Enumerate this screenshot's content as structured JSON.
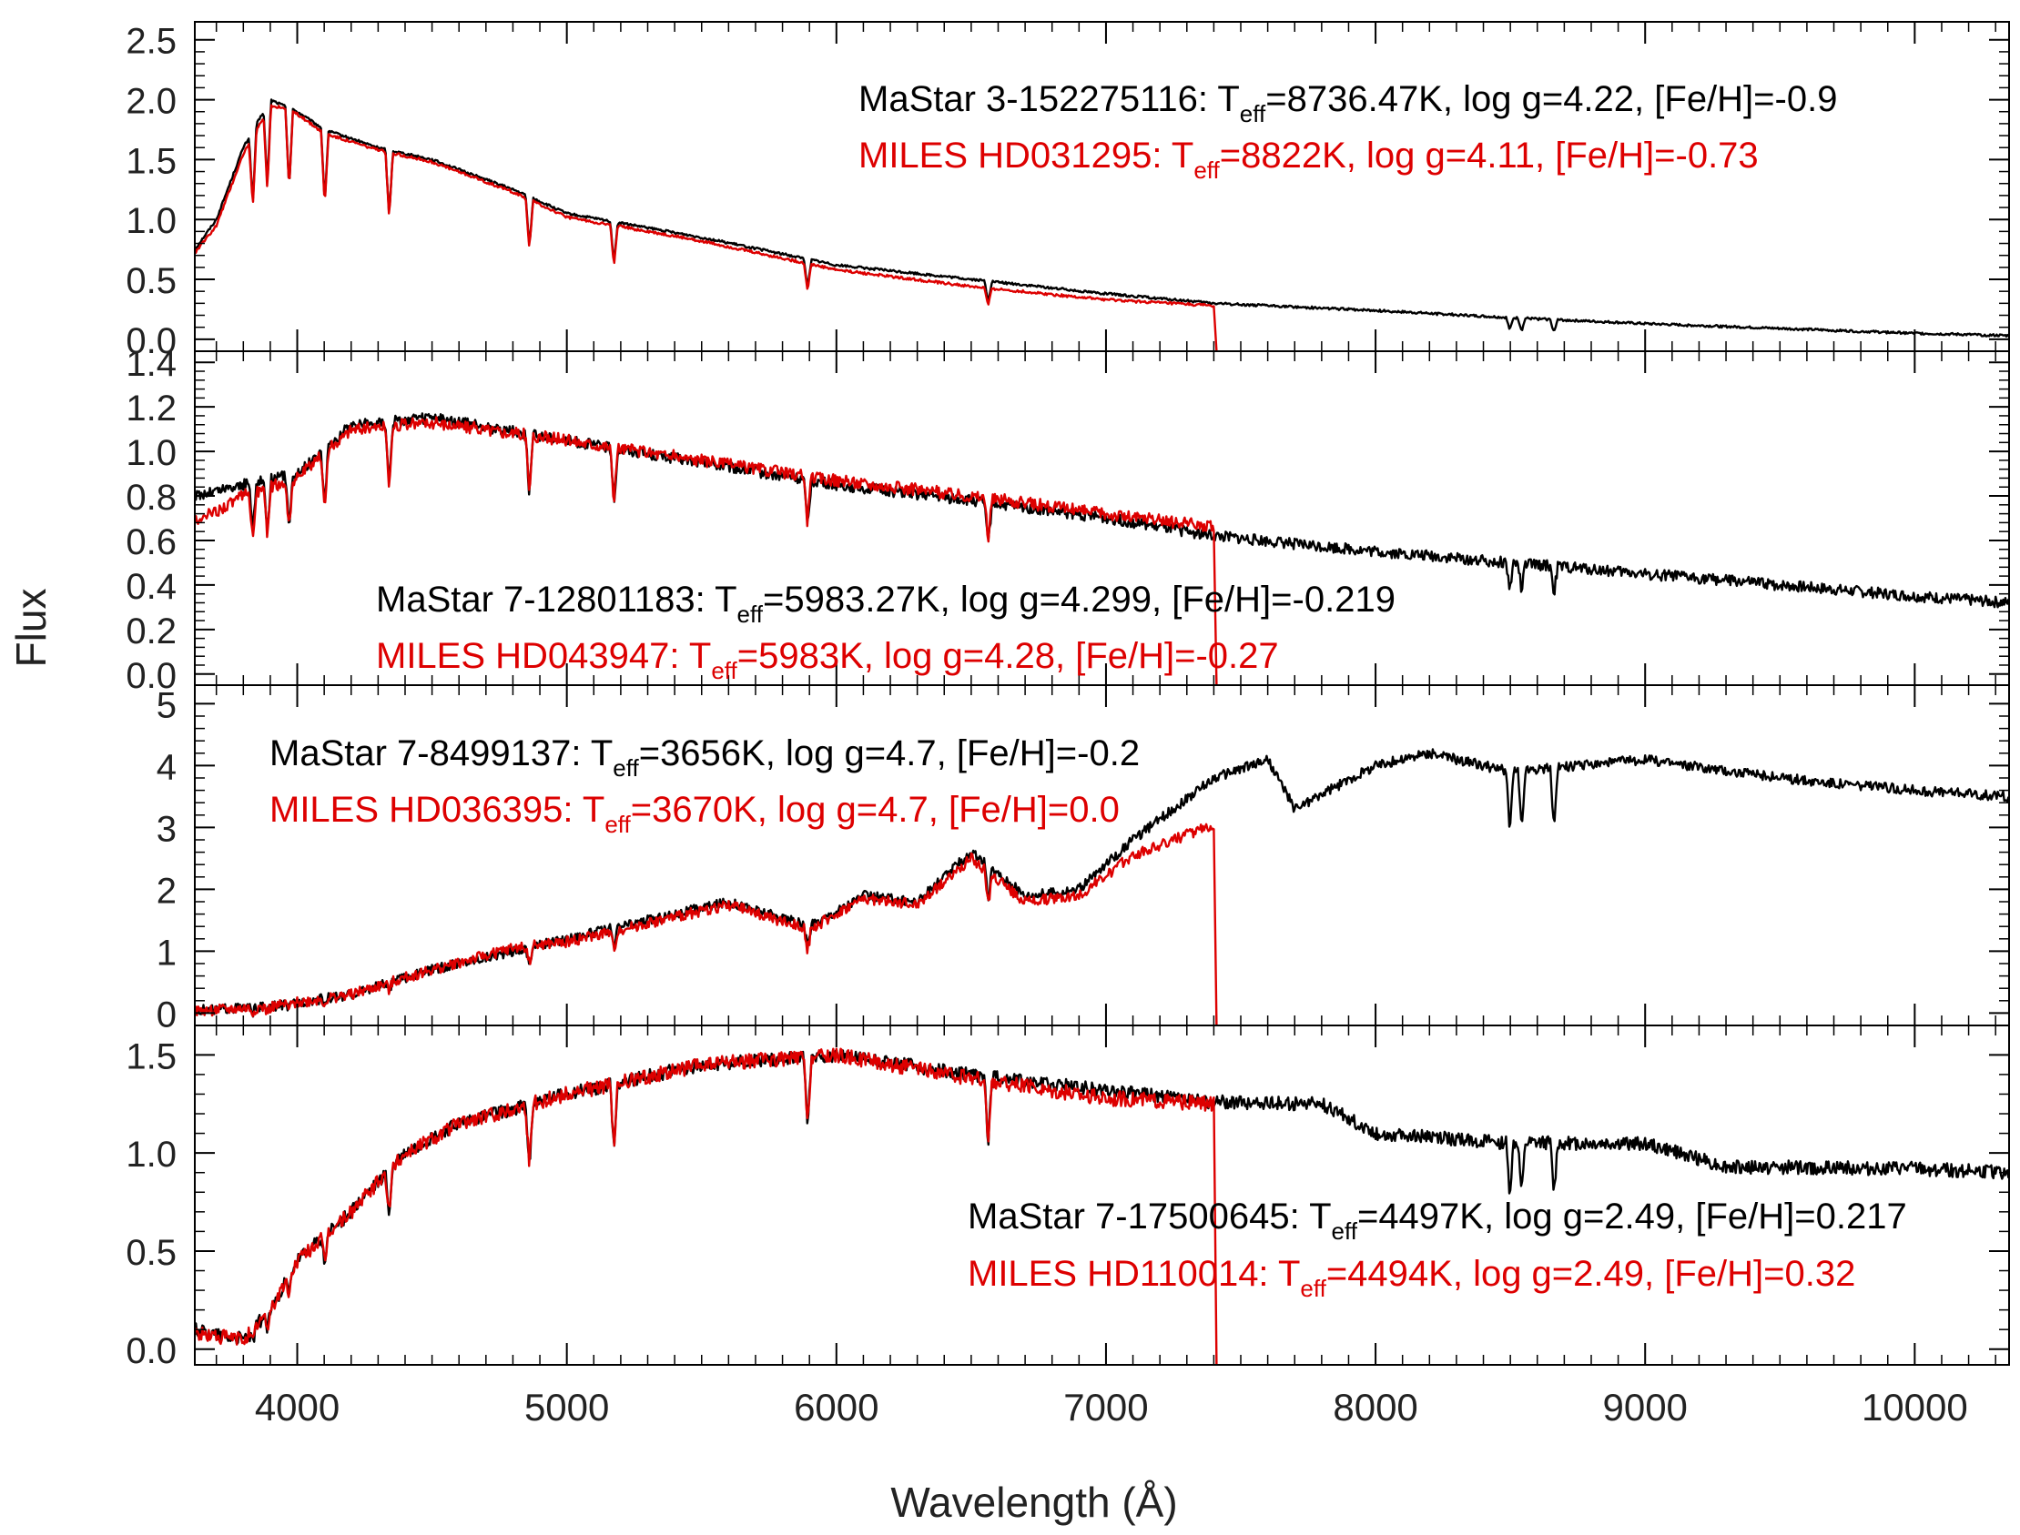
{
  "chart_data": {
    "type": "line",
    "xlabel": "Wavelength (Å)",
    "ylabel": "Flux",
    "xlim": [
      3620,
      10350
    ],
    "x_ticks": [
      4000,
      5000,
      6000,
      7000,
      8000,
      9000,
      10000
    ],
    "x_tick_labels": [
      "4000",
      "5000",
      "6000",
      "7000",
      "8000",
      "9000",
      "10000"
    ],
    "colors": {
      "mastar": "#000000",
      "miles": "#dd0000"
    },
    "panels": [
      {
        "id": "p1",
        "ylim": [
          -0.1,
          2.65
        ],
        "yticks": [
          0,
          0.5,
          1,
          1.5,
          2,
          2.5
        ],
        "ytick_labels": [
          "0.0",
          "0.5",
          "1.0",
          "1.5",
          "2.0",
          "2.5"
        ],
        "miles_end": 7410,
        "legend": {
          "mastar": {
            "pre": "MaStar 3-152275116: T",
            "sub": "eff",
            "post": "=8736.47K, log g=4.22, [Fe/H]=-0.9"
          },
          "miles": {
            "pre": "MILES HD031295: T",
            "sub": "eff",
            "post": "=8822K, log g=4.11, [Fe/H]=-0.73"
          }
        },
        "series": [
          {
            "name": "MaStar 3-152275116",
            "x": [
              3620,
              3700,
              3800,
              3900,
              3950,
              4000,
              4100,
              4300,
              4500,
              4800,
              5000,
              5500,
              6000,
              6500,
              7000,
              7400,
              8000,
              8500,
              9000,
              9500,
              10000,
              10350
            ],
            "y": [
              0.75,
              1.0,
              1.6,
              2.0,
              1.95,
              1.9,
              1.75,
              1.6,
              1.5,
              1.25,
              1.05,
              0.85,
              0.62,
              0.5,
              0.38,
              0.3,
              0.24,
              0.18,
              0.13,
              0.09,
              0.05,
              0.03
            ]
          },
          {
            "name": "MILES HD031295",
            "x": [
              3620,
              3700,
              3800,
              3900,
              3950,
              4000,
              4100,
              4300,
              4500,
              4800,
              5000,
              5500,
              6000,
              6500,
              7000,
              7400
            ],
            "y": [
              0.72,
              0.95,
              1.55,
              1.95,
              1.93,
              1.88,
              1.72,
              1.58,
              1.48,
              1.23,
              1.02,
              0.82,
              0.58,
              0.44,
              0.33,
              0.28
            ]
          }
        ]
      },
      {
        "id": "p2",
        "ylim": [
          -0.05,
          1.45
        ],
        "yticks": [
          0,
          0.2,
          0.4,
          0.6,
          0.8,
          1.0,
          1.2,
          1.4
        ],
        "ytick_labels": [
          "0.0",
          "0.2",
          "0.4",
          "0.6",
          "0.8",
          "1.0",
          "1.2",
          "1.4"
        ],
        "miles_end": 7410,
        "legend": {
          "mastar": {
            "pre": "MaStar 7-12801183: T",
            "sub": "eff",
            "post": "=5983.27K, log g=4.299, [Fe/H]=-0.219"
          },
          "miles": {
            "pre": "MILES HD043947: T",
            "sub": "eff",
            "post": "=5983K, log g=4.28, [Fe/H]=-0.27"
          }
        },
        "series": [
          {
            "name": "MaStar 7-12801183",
            "x": [
              3620,
              3800,
              4000,
              4200,
              4500,
              5000,
              5500,
              6000,
              6500,
              7000,
              7400,
              8000,
              8500,
              9000,
              9500,
              10000,
              10350
            ],
            "y": [
              0.8,
              0.85,
              0.9,
              1.12,
              1.15,
              1.05,
              0.95,
              0.85,
              0.78,
              0.7,
              0.62,
              0.55,
              0.5,
              0.45,
              0.4,
              0.35,
              0.32
            ]
          },
          {
            "name": "MILES HD043947",
            "x": [
              3620,
              3800,
              4000,
              4200,
              4500,
              5000,
              5500,
              6000,
              6500,
              7000,
              7400
            ],
            "y": [
              0.68,
              0.8,
              0.88,
              1.1,
              1.13,
              1.05,
              0.96,
              0.87,
              0.8,
              0.72,
              0.66
            ]
          }
        ]
      },
      {
        "id": "p3",
        "ylim": [
          -0.2,
          5.3
        ],
        "yticks": [
          0,
          1,
          2,
          3,
          4,
          5
        ],
        "ytick_labels": [
          "0",
          "1",
          "2",
          "3",
          "4",
          "5"
        ],
        "miles_end": 7410,
        "legend": {
          "mastar": {
            "pre": "MaStar 7-8499137: T",
            "sub": "eff",
            "post": "=3656K, log g=4.7, [Fe/H]=-0.2"
          },
          "miles": {
            "pre": "MILES HD036395: T",
            "sub": "eff",
            "post": "=3670K, log g=4.7, [Fe/H]=0.0"
          }
        },
        "series": [
          {
            "name": "MaStar 7-8499137",
            "x": [
              3620,
              3900,
              4200,
              4500,
              4800,
              5000,
              5300,
              5600,
              5900,
              6100,
              6300,
              6500,
              6700,
              6900,
              7100,
              7400,
              7600,
              7700,
              8000,
              8200,
              8500,
              9000,
              9500,
              10000,
              10350
            ],
            "y": [
              0.05,
              0.1,
              0.3,
              0.7,
              1.0,
              1.2,
              1.5,
              1.8,
              1.4,
              1.9,
              1.8,
              2.6,
              1.9,
              2.0,
              2.8,
              3.8,
              4.1,
              3.3,
              4.0,
              4.2,
              3.9,
              4.1,
              3.8,
              3.6,
              3.5
            ]
          },
          {
            "name": "MILES HD036395",
            "x": [
              3620,
              3900,
              4200,
              4500,
              4800,
              5000,
              5300,
              5600,
              5900,
              6100,
              6300,
              6500,
              6700,
              6900,
              7100,
              7400
            ],
            "y": [
              0.03,
              0.1,
              0.3,
              0.7,
              1.05,
              1.15,
              1.45,
              1.75,
              1.35,
              1.85,
              1.75,
              2.5,
              1.8,
              1.9,
              2.55,
              3.05
            ]
          }
        ]
      },
      {
        "id": "p4",
        "ylim": [
          -0.08,
          1.65
        ],
        "yticks": [
          0,
          0.5,
          1.0,
          1.5
        ],
        "ytick_labels": [
          "0.0",
          "0.5",
          "1.0",
          "1.5"
        ],
        "miles_end": 7410,
        "legend": {
          "mastar": {
            "pre": "MaStar 7-17500645: T",
            "sub": "eff",
            "post": "=4497K, log g=2.49, [Fe/H]=0.217"
          },
          "miles": {
            "pre": "MILES HD110014: T",
            "sub": "eff",
            "post": "=4494K, log g=2.49, [Fe/H]=0.32"
          }
        },
        "series": [
          {
            "name": "MaStar 7-17500645",
            "x": [
              3620,
              3800,
              3900,
              4000,
              4200,
              4400,
              4600,
              5000,
              5500,
              6000,
              6500,
              7000,
              7400,
              7800,
              8000,
              8500,
              9000,
              9300,
              10000,
              10350
            ],
            "y": [
              0.1,
              0.05,
              0.2,
              0.45,
              0.7,
              1.0,
              1.15,
              1.3,
              1.45,
              1.5,
              1.4,
              1.32,
              1.26,
              1.25,
              1.1,
              1.05,
              1.05,
              0.93,
              0.92,
              0.9
            ]
          },
          {
            "name": "MILES HD110014",
            "x": [
              3620,
              3800,
              3900,
              4000,
              4200,
              4400,
              4600,
              5000,
              5500,
              6000,
              6500,
              7000,
              7400
            ],
            "y": [
              0.08,
              0.05,
              0.2,
              0.45,
              0.7,
              1.0,
              1.15,
              1.3,
              1.45,
              1.5,
              1.38,
              1.28,
              1.25
            ]
          }
        ]
      }
    ]
  }
}
